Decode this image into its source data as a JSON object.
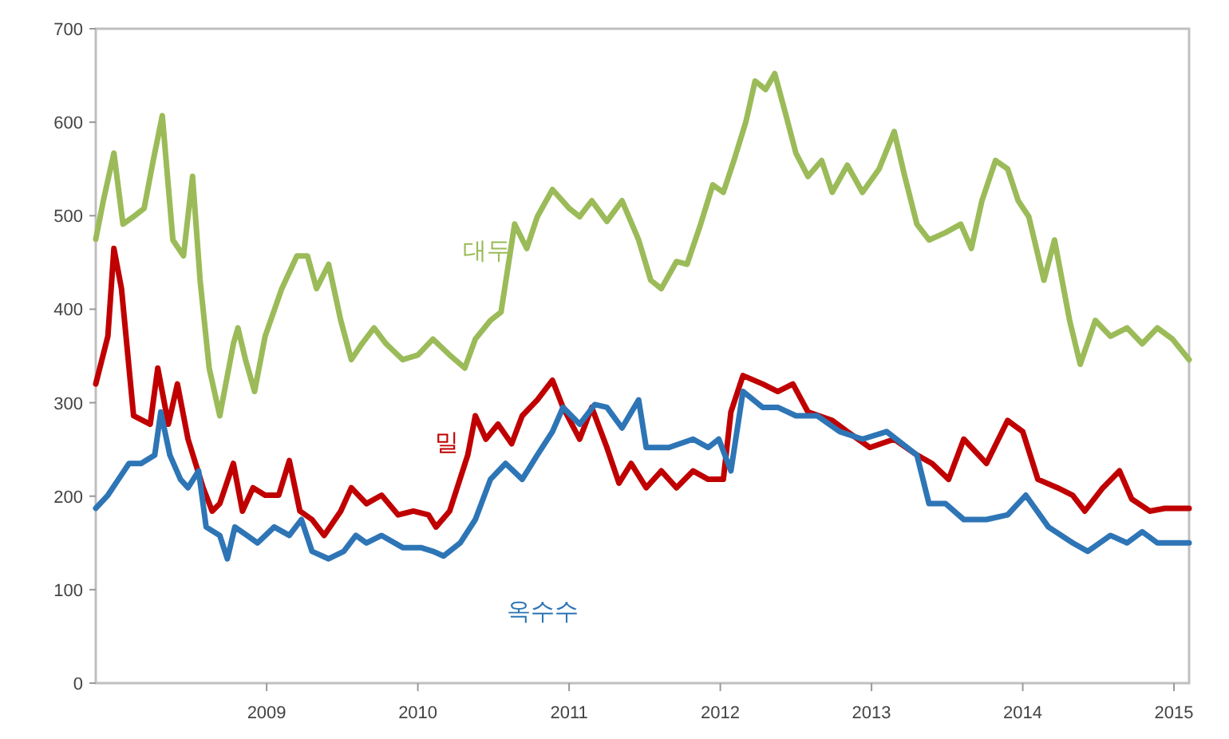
{
  "chart_data": {
    "type": "line",
    "xlim": [
      2007.87,
      2015.1
    ],
    "xticks": [
      2009,
      2010,
      2011,
      2012,
      2013,
      2014,
      2015
    ],
    "ylim": [
      0,
      700
    ],
    "yticks": [
      0,
      100,
      200,
      300,
      400,
      500,
      600,
      700
    ],
    "grid": false,
    "marker": "none",
    "line_style": "solid",
    "series": [
      {
        "name": "대두",
        "color": "#9bbb59",
        "x": [
          2007.87,
          2007.92,
          2007.99,
          2008.05,
          2008.12,
          2008.19,
          2008.25,
          2008.31,
          2008.38,
          2008.45,
          2008.51,
          2008.56,
          2008.62,
          2008.69,
          2008.78,
          2008.81,
          2008.86,
          2008.92,
          2008.99,
          2009.1,
          2009.2,
          2009.27,
          2009.33,
          2009.41,
          2009.49,
          2009.56,
          2009.63,
          2009.71,
          2009.79,
          2009.9,
          2010.0,
          2010.1,
          2010.21,
          2010.31,
          2010.38,
          2010.48,
          2010.55,
          2010.64,
          2010.72,
          2010.79,
          2010.89,
          2011.0,
          2011.07,
          2011.15,
          2011.25,
          2011.35,
          2011.46,
          2011.54,
          2011.61,
          2011.71,
          2011.78,
          2011.87,
          2011.95,
          2012.02,
          2012.09,
          2012.17,
          2012.23,
          2012.3,
          2012.36,
          2012.43,
          2012.5,
          2012.58,
          2012.67,
          2012.74,
          2012.84,
          2012.94,
          2013.05,
          2013.15,
          2013.22,
          2013.3,
          2013.38,
          2013.49,
          2013.59,
          2013.66,
          2013.73,
          2013.82,
          2013.9,
          2013.97,
          2014.04,
          2014.14,
          2014.21,
          2014.31,
          2014.38,
          2014.48,
          2014.58,
          2014.69,
          2014.79,
          2014.89,
          2014.99,
          2015.1
        ],
        "values": [
          475,
          516,
          567,
          491,
          499,
          508,
          559,
          607,
          474,
          457,
          542,
          431,
          337,
          286,
          363,
          380,
          346,
          312,
          371,
          422,
          457,
          457,
          422,
          448,
          388,
          346,
          363,
          380,
          363,
          346,
          351,
          368,
          351,
          337,
          368,
          388,
          397,
          491,
          465,
          499,
          528,
          508,
          499,
          516,
          494,
          516,
          474,
          431,
          422,
          451,
          448,
          491,
          533,
          525,
          559,
          601,
          644,
          635,
          652,
          610,
          567,
          542,
          559,
          525,
          554,
          525,
          550,
          590,
          542,
          491,
          474,
          482,
          491,
          465,
          516,
          559,
          550,
          516,
          499,
          431,
          474,
          388,
          341,
          388,
          371,
          380,
          363,
          380,
          368,
          346
        ]
      },
      {
        "name": "밀",
        "color": "#c00000",
        "x": [
          2007.87,
          2007.95,
          2007.99,
          2008.04,
          2008.12,
          2008.23,
          2008.28,
          2008.35,
          2008.41,
          2008.48,
          2008.58,
          2008.64,
          2008.69,
          2008.78,
          2008.84,
          2008.91,
          2008.99,
          2009.08,
          2009.15,
          2009.22,
          2009.3,
          2009.38,
          2009.49,
          2009.56,
          2009.66,
          2009.76,
          2009.87,
          2009.97,
          2010.07,
          2010.12,
          2010.21,
          2010.33,
          2010.38,
          2010.45,
          2010.53,
          2010.62,
          2010.69,
          2010.79,
          2010.89,
          2010.96,
          2011.07,
          2011.15,
          2011.25,
          2011.33,
          2011.41,
          2011.51,
          2011.61,
          2011.71,
          2011.82,
          2011.92,
          2012.02,
          2012.07,
          2012.15,
          2012.28,
          2012.38,
          2012.48,
          2012.58,
          2012.74,
          2012.84,
          2012.99,
          2013.15,
          2013.3,
          2013.4,
          2013.51,
          2013.61,
          2013.76,
          2013.9,
          2014.0,
          2014.1,
          2014.23,
          2014.33,
          2014.41,
          2014.53,
          2014.64,
          2014.72,
          2014.84,
          2014.94,
          2015.1
        ],
        "values": [
          320,
          371,
          465,
          422,
          286,
          277,
          337,
          277,
          320,
          261,
          209,
          184,
          192,
          235,
          184,
          209,
          201,
          201,
          238,
          184,
          175,
          158,
          184,
          209,
          192,
          201,
          180,
          184,
          180,
          167,
          184,
          244,
          286,
          261,
          277,
          256,
          286,
          303,
          324,
          295,
          261,
          295,
          252,
          214,
          235,
          209,
          227,
          209,
          227,
          218,
          218,
          290,
          329,
          320,
          312,
          320,
          290,
          281,
          269,
          252,
          261,
          244,
          235,
          218,
          261,
          235,
          281,
          269,
          218,
          209,
          201,
          184,
          209,
          227,
          197,
          184,
          187,
          187
        ]
      },
      {
        "name": "옥수수",
        "color": "#2e75b6",
        "x": [
          2007.87,
          2007.95,
          2008.02,
          2008.09,
          2008.17,
          2008.26,
          2008.3,
          2008.36,
          2008.43,
          2008.48,
          2008.55,
          2008.6,
          2008.69,
          2008.74,
          2008.79,
          2008.87,
          2008.94,
          2009.05,
          2009.15,
          2009.23,
          2009.3,
          2009.41,
          2009.51,
          2009.59,
          2009.66,
          2009.76,
          2009.9,
          2010.02,
          2010.1,
          2010.17,
          2010.28,
          2010.38,
          2010.48,
          2010.58,
          2010.69,
          2010.79,
          2010.89,
          2010.96,
          2011.07,
          2011.17,
          2011.25,
          2011.35,
          2011.46,
          2011.51,
          2011.66,
          2011.82,
          2011.92,
          2011.99,
          2012.07,
          2012.15,
          2012.28,
          2012.38,
          2012.5,
          2012.64,
          2012.79,
          2012.94,
          2013.1,
          2013.3,
          2013.38,
          2013.49,
          2013.61,
          2013.76,
          2013.9,
          2014.02,
          2014.17,
          2014.33,
          2014.43,
          2014.58,
          2014.69,
          2014.79,
          2014.89,
          2015.1
        ],
        "values": [
          187,
          201,
          218,
          235,
          235,
          244,
          290,
          244,
          218,
          209,
          227,
          167,
          158,
          133,
          167,
          158,
          150,
          167,
          158,
          175,
          141,
          133,
          141,
          158,
          150,
          158,
          145,
          145,
          141,
          136,
          150,
          175,
          218,
          235,
          218,
          244,
          269,
          295,
          277,
          298,
          295,
          273,
          303,
          252,
          252,
          261,
          252,
          261,
          227,
          312,
          295,
          295,
          286,
          286,
          269,
          261,
          269,
          244,
          192,
          192,
          175,
          175,
          180,
          201,
          167,
          150,
          141,
          158,
          150,
          162,
          150,
          150
        ]
      }
    ]
  }
}
